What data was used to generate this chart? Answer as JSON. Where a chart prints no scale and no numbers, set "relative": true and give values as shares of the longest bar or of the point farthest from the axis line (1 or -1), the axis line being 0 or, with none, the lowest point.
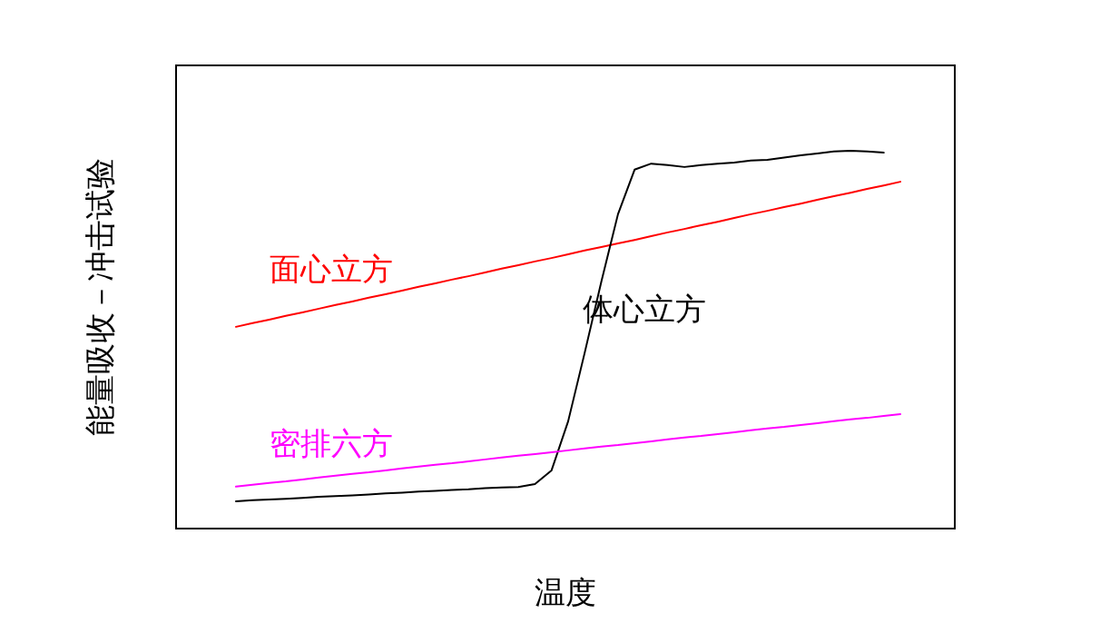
{
  "chart_data": {
    "type": "line",
    "relative": true,
    "xlabel": "温度",
    "ylabel": "能量吸收－冲击试验",
    "categories": [
      null,
      null,
      null,
      null,
      null,
      null,
      null,
      null,
      null,
      null,
      null,
      null,
      null,
      null,
      null,
      null,
      null,
      null,
      null,
      null,
      null,
      null,
      null,
      null,
      null,
      null,
      null,
      null,
      null,
      null,
      null,
      null,
      null,
      null,
      null,
      null,
      null,
      null,
      null,
      null,
      null
    ],
    "series": [
      {
        "name": "面心立方",
        "color": "#ff0000",
        "values": [
          0.534,
          0.544,
          0.553,
          0.563,
          0.572,
          0.582,
          0.592,
          0.601,
          0.611,
          0.62,
          0.63,
          0.64,
          0.649,
          0.659,
          0.668,
          0.678,
          0.688,
          0.697,
          0.707,
          0.716,
          0.726,
          0.736,
          0.745,
          0.755,
          0.764,
          0.774,
          0.784,
          0.793,
          0.803,
          0.812,
          0.822,
          0.832,
          0.841,
          0.851,
          0.86,
          0.87,
          0.88,
          0.889,
          0.899,
          0.908,
          0.918
        ]
      },
      {
        "name": "体心立方",
        "color": "#000000",
        "values": [
          0.072,
          0.075,
          0.077,
          0.079,
          0.081,
          0.084,
          0.086,
          0.088,
          0.09,
          0.093,
          0.095,
          0.098,
          0.1,
          0.102,
          0.104,
          0.107,
          0.109,
          0.11,
          0.118,
          0.154,
          0.284,
          0.466,
          0.654,
          0.832,
          0.95,
          0.966,
          0.962,
          0.957,
          0.962,
          0.966,
          0.969,
          0.974,
          0.976,
          0.982,
          0.988,
          0.993,
          0.998,
          1,
          0.998,
          0.995,
          null
        ]
      },
      {
        "name": "密排六方",
        "color": "#ff00ff",
        "values": [
          0.111,
          0.116,
          0.121,
          0.125,
          0.13,
          0.135,
          0.14,
          0.145,
          0.149,
          0.154,
          0.159,
          0.164,
          0.169,
          0.173,
          0.178,
          0.183,
          0.188,
          0.193,
          0.197,
          0.202,
          0.207,
          0.212,
          0.217,
          0.221,
          0.226,
          0.231,
          0.236,
          0.241,
          0.245,
          0.25,
          0.255,
          0.26,
          0.265,
          0.269,
          0.274,
          0.279,
          0.284,
          0.289,
          0.293,
          0.298,
          0.303
        ]
      }
    ]
  }
}
